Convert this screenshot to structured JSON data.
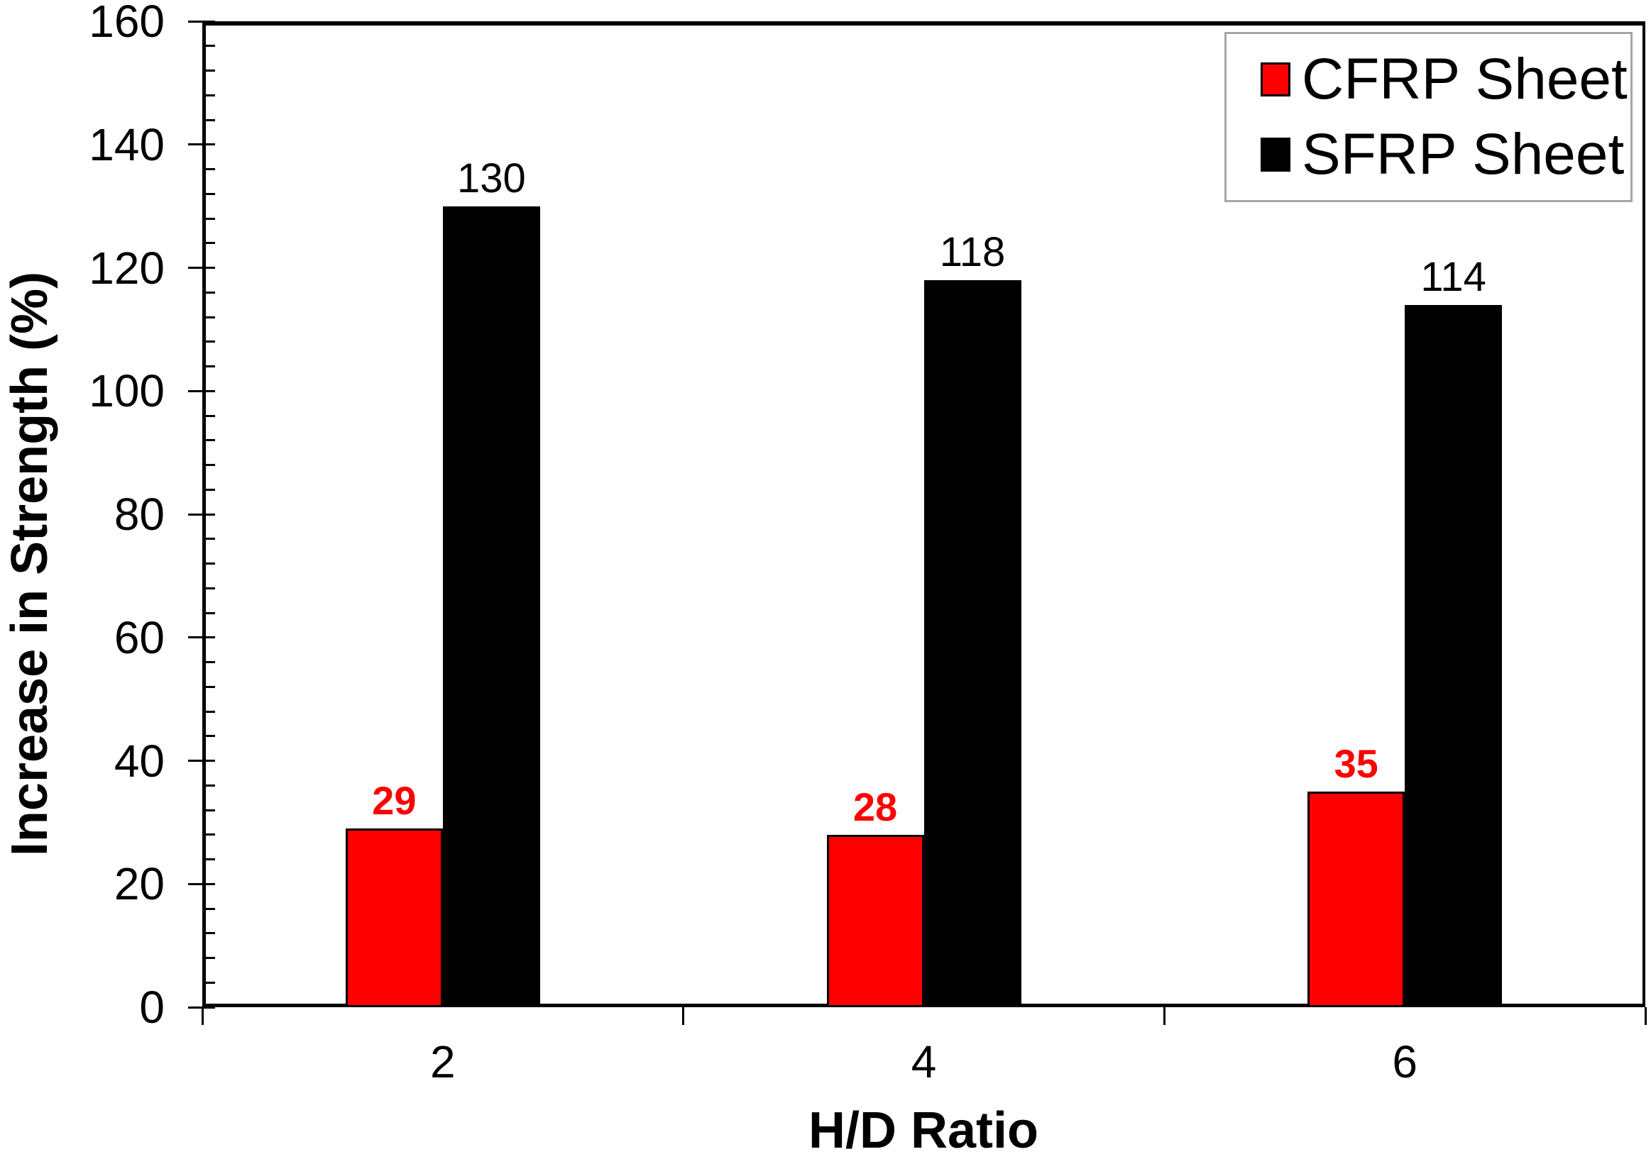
{
  "chart_data": {
    "type": "bar",
    "title": "",
    "categories": [
      "2",
      "4",
      "6"
    ],
    "series": [
      {
        "name": "CFRP Sheet",
        "color": "#ff0000",
        "values": [
          29,
          28,
          35
        ],
        "label_color": "#ff0000",
        "label_bold": true
      },
      {
        "name": "SFRP Sheet",
        "color": "#000000",
        "values": [
          130,
          118,
          114
        ],
        "label_color": "#000000",
        "label_bold": false
      }
    ],
    "xlabel": "H/D Ratio",
    "ylabel": "Increase in Strength (%)",
    "ylim": [
      0,
      160
    ],
    "y_major_step": 20,
    "y_minor_step": 4,
    "y_tick_labels": [
      "0",
      "20",
      "40",
      "60",
      "80",
      "100",
      "120",
      "140",
      "160"
    ],
    "grid": false,
    "legend_position": "top-right",
    "bar_outline_color": "#000000",
    "axis_color": "#000000",
    "legend_border_color": "#a6a6a6"
  }
}
